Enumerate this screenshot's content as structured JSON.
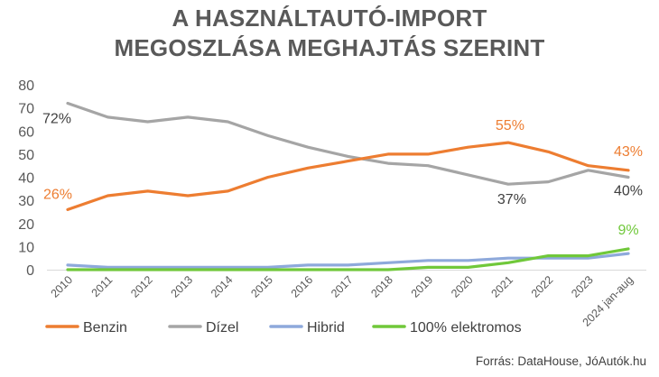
{
  "title_line1": "A HASZNÁLTAUTÓ-IMPORT",
  "title_line2": "MEGOSZLÁSA MEGHAJTÁS SZERINT",
  "source": "Forrás: DataHouse, JóAutók.hu",
  "chart_data": {
    "type": "line",
    "title": "A HASZNÁLTAUTÓ-IMPORT MEGOSZLÁSA MEGHAJTÁS SZERINT",
    "xlabel": "",
    "ylabel": "",
    "ylim": [
      0,
      80
    ],
    "yticks": [
      "0",
      "10",
      "20",
      "30",
      "40",
      "50",
      "60",
      "70",
      "80"
    ],
    "grid": false,
    "legend_position": "bottom-left",
    "categories": [
      "2010",
      "2011",
      "2012",
      "2013",
      "2014",
      "2015",
      "2016",
      "2017",
      "2018",
      "2019",
      "2020",
      "2021",
      "2022",
      "2023",
      "2024 jan-aug"
    ],
    "series": [
      {
        "name": "Benzin",
        "color": "#ED7D31",
        "values": [
          26,
          32,
          34,
          32,
          34,
          40,
          44,
          47,
          50,
          50,
          53,
          55,
          51,
          45,
          43
        ]
      },
      {
        "name": "Dízel",
        "color": "#A5A5A5",
        "values": [
          72,
          66,
          64,
          66,
          64,
          58,
          53,
          49,
          46,
          45,
          41,
          37,
          38,
          43,
          40
        ]
      },
      {
        "name": "Hibrid",
        "color": "#8EA9DB",
        "values": [
          2,
          1,
          1,
          1,
          1,
          1,
          2,
          2,
          3,
          4,
          4,
          5,
          5,
          5,
          7
        ]
      },
      {
        "name": "100% elektromos",
        "color": "#70C83A",
        "values": [
          0,
          0,
          0,
          0,
          0,
          0,
          0,
          0,
          0,
          1,
          1,
          3,
          6,
          6,
          9
        ]
      }
    ],
    "annotations": [
      {
        "text": "72%",
        "series": "Dízel",
        "index": 0,
        "color": "#404040"
      },
      {
        "text": "26%",
        "series": "Benzin",
        "index": 0,
        "color": "#ED7D31"
      },
      {
        "text": "55%",
        "series": "Benzin",
        "index": 11,
        "color": "#ED7D31"
      },
      {
        "text": "37%",
        "series": "Dízel",
        "index": 11,
        "color": "#404040"
      },
      {
        "text": "43%",
        "series": "Benzin",
        "index": 14,
        "color": "#ED7D31"
      },
      {
        "text": "40%",
        "series": "Dízel",
        "index": 14,
        "color": "#404040"
      },
      {
        "text": "9%",
        "series": "100% elektromos",
        "index": 14,
        "color": "#70C83A"
      }
    ]
  }
}
